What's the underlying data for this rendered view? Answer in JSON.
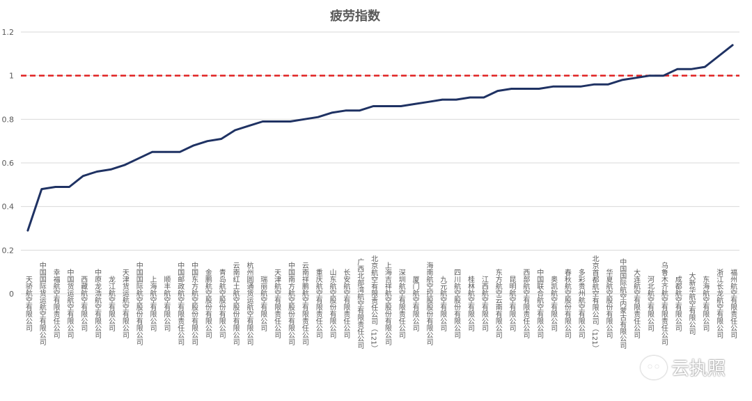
{
  "chart_data": {
    "type": "line",
    "title": "疲劳指数",
    "ylim": [
      0,
      1.2
    ],
    "yticks": [
      "0",
      "0.2",
      "0.4",
      "0.6",
      "0.8",
      "1",
      "1.2"
    ],
    "grid": true,
    "reference_line": {
      "value": 1,
      "color": "#e02020",
      "style": "dashed"
    },
    "series_color": "#1f3263",
    "categories": [
      "天骄航空有限公司",
      "中国国际货运航空有限公司",
      "幸福航空有限责任公司",
      "中国货运航空有限公司",
      "西藏航空有限公司",
      "中原龙浩航空有限公司",
      "龙江航空有限公司",
      "天津货运航空有限公司",
      "中国国际航空股份有限公司",
      "上海航空有限公司",
      "顺丰航空有限公司",
      "中国邮政航空有限责任公司",
      "中国东方航空股份有限公司",
      "金鹏航空股份有限公司",
      "青岛航空股份有限公司",
      "云南红土航空股份有限公司",
      "杭州圆通货运航空有限公司",
      "瑞丽航空有限公司",
      "天津航空有限责任公司",
      "中国南方航空股份有限公司",
      "云南祥鹏航空有限责任公司",
      "重庆航空有限责任公司",
      "山东航空股份有限公司",
      "长安航空有限责任公司",
      "广西北部湾航空有限责任公司",
      "北京航空有限责任公司（121）",
      "上海吉祥航空股份有限公司",
      "深圳航空有限责任公司",
      "厦门航空有限公司",
      "海南航空控股股份有限公司",
      "九元航空有限公司",
      "四川航空股份有限公司",
      "桂林航空有限公司",
      "江西航空有限公司",
      "东方航空云南有限公司",
      "昆明航空有限公司",
      "西部航空有限责任公司",
      "中国联合航空有限公司",
      "奥凯航空有限公司",
      "春秋航空股份有限公司",
      "多彩贵州航空有限公司",
      "北京首都航空有限公司（121）",
      "华夏航空股份有限公司",
      "中国国际航空内蒙古有限公司",
      "大连航空有限责任公司",
      "河北航空有限公司",
      "乌鲁木齐航空有限责任公司",
      "成都航空有限公司",
      "大新华航空有限公司",
      "东海航空有限公司",
      "浙江长龙航空有限公司",
      "福州航空有限责任公司"
    ],
    "values": [
      0.29,
      0.48,
      0.49,
      0.49,
      0.54,
      0.56,
      0.57,
      0.59,
      0.62,
      0.65,
      0.65,
      0.65,
      0.68,
      0.7,
      0.71,
      0.75,
      0.77,
      0.79,
      0.79,
      0.79,
      0.8,
      0.81,
      0.83,
      0.84,
      0.84,
      0.86,
      0.86,
      0.86,
      0.87,
      0.88,
      0.89,
      0.89,
      0.9,
      0.9,
      0.93,
      0.94,
      0.94,
      0.94,
      0.95,
      0.95,
      0.95,
      0.96,
      0.96,
      0.98,
      0.99,
      1.0,
      1.0,
      1.03,
      1.03,
      1.04,
      1.09,
      1.14
    ]
  },
  "watermark": {
    "text": "云执照",
    "icon": "wechat-icon"
  }
}
